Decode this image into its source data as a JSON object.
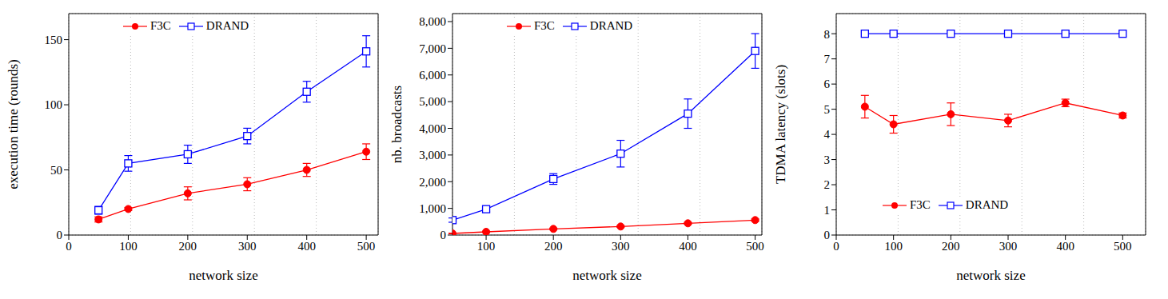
{
  "chart_data": [
    {
      "type": "line",
      "x_label": "network size",
      "y_label": "execution time (rounds)",
      "x": [
        50,
        100,
        200,
        300,
        400,
        500
      ],
      "xlim": [
        0,
        520
      ],
      "xticks": [
        0,
        100,
        200,
        300,
        400,
        500
      ],
      "ylim": [
        0,
        170
      ],
      "yticks": [
        0,
        50,
        100,
        150
      ],
      "grid": true,
      "legend": "top",
      "series": [
        {
          "name": "F3C",
          "color": "#ff0000",
          "marker": "circle",
          "values": [
            12,
            20,
            32,
            39,
            50,
            64
          ],
          "errors": [
            2,
            1,
            5,
            5,
            5,
            6
          ]
        },
        {
          "name": "DRAND",
          "color": "#0000ff",
          "marker": "square",
          "values": [
            19,
            55,
            62,
            76,
            110,
            141
          ],
          "errors": [
            3,
            6,
            7,
            6,
            8,
            12
          ]
        }
      ]
    },
    {
      "type": "line",
      "x_label": "network size",
      "y_label": "nb. broadcasts",
      "x": [
        50,
        100,
        200,
        300,
        400,
        500
      ],
      "xlim": [
        50,
        510
      ],
      "xticks": [
        100,
        200,
        300,
        400,
        500
      ],
      "ylim": [
        0,
        8300
      ],
      "yticks": [
        0,
        {
          "value": 1000,
          "label": "1,000"
        },
        {
          "value": 2000,
          "label": "2,000"
        },
        {
          "value": 3000,
          "label": "3,000"
        },
        {
          "value": 4000,
          "label": "4,000"
        },
        {
          "value": 5000,
          "label": "5,000"
        },
        {
          "value": 6000,
          "label": "6,000"
        },
        {
          "value": 7000,
          "label": "7,000"
        },
        {
          "value": 8000,
          "label": "8,000"
        }
      ],
      "grid": true,
      "legend": "top",
      "series": [
        {
          "name": "F3C",
          "color": "#ff0000",
          "marker": "circle",
          "values": [
            60,
            120,
            230,
            320,
            440,
            560
          ],
          "errors": [
            10,
            20,
            20,
            30,
            30,
            40
          ]
        },
        {
          "name": "DRAND",
          "color": "#0000ff",
          "marker": "square",
          "values": [
            560,
            970,
            2100,
            3050,
            4550,
            6900
          ],
          "errors": [
            80,
            100,
            200,
            500,
            550,
            650
          ]
        }
      ]
    },
    {
      "type": "line",
      "x_label": "network size",
      "y_label": "TDMA latency (slots)",
      "x": [
        50,
        100,
        200,
        300,
        400,
        500
      ],
      "xlim": [
        0,
        540
      ],
      "xticks": [
        0,
        100,
        200,
        300,
        400,
        500
      ],
      "ylim": [
        0,
        8.8
      ],
      "yticks": [
        0,
        1,
        2,
        3,
        4,
        5,
        6,
        7,
        8
      ],
      "grid": true,
      "legend": "bottom",
      "series": [
        {
          "name": "F3C",
          "color": "#ff0000",
          "marker": "circle",
          "values": [
            5.1,
            4.4,
            4.8,
            4.55,
            5.25,
            4.75
          ],
          "errors": [
            0.45,
            0.35,
            0.45,
            0.25,
            0.15,
            0.1
          ]
        },
        {
          "name": "DRAND",
          "color": "#0000ff",
          "marker": "square",
          "values": [
            8,
            8,
            8,
            8,
            8,
            8
          ],
          "errors": [
            0,
            0,
            0,
            0,
            0,
            0
          ]
        }
      ]
    }
  ]
}
